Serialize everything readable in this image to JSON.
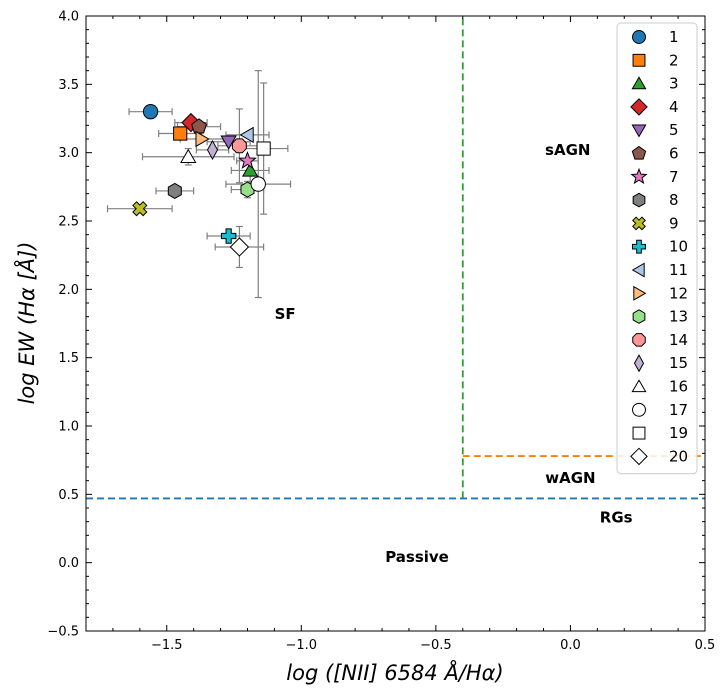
{
  "chart_data": {
    "type": "scatter",
    "xlabel": "log ([NII] 6584 Å/Hα)",
    "ylabel": "log EW (Hα [Å])",
    "xlim": [
      -1.8,
      0.5
    ],
    "ylim": [
      -0.5,
      4.0
    ],
    "xticks": [
      -1.5,
      -1.0,
      -0.5,
      0.0,
      0.5
    ],
    "xtick_labels": [
      "−1.5",
      "−1.0",
      "−0.5",
      "0.0",
      "0.5"
    ],
    "yticks": [
      -0.5,
      0.0,
      0.5,
      1.0,
      1.5,
      2.0,
      2.5,
      3.0,
      3.5,
      4.0
    ],
    "ytick_labels": [
      "−0.5",
      "0.0",
      "0.5",
      "1.0",
      "1.5",
      "2.0",
      "2.5",
      "3.0",
      "3.5",
      "4.0"
    ],
    "grid": false,
    "legend_position": "top-right",
    "boundary_lines": [
      {
        "orientation": "vertical",
        "x": -0.4,
        "y_range": [
          0.47,
          4.0
        ],
        "color": "#2ca02c",
        "style": "dashed"
      },
      {
        "orientation": "horizontal",
        "y": 0.47,
        "x_range": [
          -1.8,
          0.5
        ],
        "color": "#1f77b4",
        "style": "dashed"
      },
      {
        "orientation": "horizontal",
        "y": 0.78,
        "x_range": [
          -0.4,
          0.5
        ],
        "color": "#ff7f0e",
        "style": "dashed"
      }
    ],
    "region_labels": [
      {
        "text": "sAGN",
        "x": -0.01,
        "y": 3.02
      },
      {
        "text": "SF",
        "x": -1.06,
        "y": 1.82
      },
      {
        "text": "wAGN",
        "x": 0.0,
        "y": 0.62
      },
      {
        "text": "RGs",
        "x": 0.17,
        "y": 0.33
      },
      {
        "text": "Passive",
        "x": -0.57,
        "y": 0.04
      }
    ],
    "series": [
      {
        "name": "1",
        "marker": "circle",
        "color": "#1f77b4",
        "filled": true,
        "x": -1.56,
        "y": 3.3,
        "xerr": 0.08,
        "yerr": 0.0
      },
      {
        "name": "2",
        "marker": "square",
        "color": "#ff7f0e",
        "filled": true,
        "x": -1.45,
        "y": 3.14,
        "xerr": 0.08,
        "yerr": 0.0
      },
      {
        "name": "3",
        "marker": "triangle-up",
        "color": "#2ca02c",
        "filled": true,
        "x": -1.19,
        "y": 2.87,
        "xerr": 0.07,
        "yerr": 0.09
      },
      {
        "name": "4",
        "marker": "diamond",
        "color": "#d62728",
        "filled": true,
        "x": -1.41,
        "y": 3.22,
        "xerr": 0.06,
        "yerr": 0.0
      },
      {
        "name": "5",
        "marker": "triangle-down",
        "color": "#9467bd",
        "filled": true,
        "x": -1.27,
        "y": 3.08,
        "xerr": 0.08,
        "yerr": 0.0
      },
      {
        "name": "6",
        "marker": "pentagon",
        "color": "#8c564b",
        "filled": true,
        "x": -1.38,
        "y": 3.19,
        "xerr": 0.08,
        "yerr": 0.0
      },
      {
        "name": "7",
        "marker": "star",
        "color": "#e377c2",
        "filled": true,
        "x": -1.2,
        "y": 2.94,
        "xerr": 0.04,
        "yerr": 0.0
      },
      {
        "name": "8",
        "marker": "hexagon",
        "color": "#7f7f7f",
        "filled": true,
        "x": -1.47,
        "y": 2.72,
        "xerr": 0.07,
        "yerr": 0.04
      },
      {
        "name": "9",
        "marker": "x-filled",
        "color": "#bcbd22",
        "filled": true,
        "x": -1.6,
        "y": 2.59,
        "xerr": 0.12,
        "yerr": 0.0
      },
      {
        "name": "10",
        "marker": "plus-filled",
        "color": "#17becf",
        "filled": true,
        "x": -1.27,
        "y": 2.39,
        "xerr": 0.08,
        "yerr": 0.0
      },
      {
        "name": "11",
        "marker": "triangle-left",
        "color": "#aec7e8",
        "filled": true,
        "x": -1.2,
        "y": 3.13,
        "xerr": 0.08,
        "yerr": 0.0
      },
      {
        "name": "12",
        "marker": "triangle-right",
        "color": "#ffbb78",
        "filled": true,
        "x": -1.37,
        "y": 3.1,
        "xerr": 0.08,
        "yerr": 0.0
      },
      {
        "name": "13",
        "marker": "hexagon",
        "color": "#98df8a",
        "filled": true,
        "x": -1.2,
        "y": 2.73,
        "xerr": 0.06,
        "yerr": 0.06
      },
      {
        "name": "14",
        "marker": "octagon",
        "color": "#ff9896",
        "filled": true,
        "x": -1.23,
        "y": 3.05,
        "xerr": 0.08,
        "yerr": 0.27
      },
      {
        "name": "15",
        "marker": "thin-diamond",
        "color": "#c5b0d5",
        "filled": true,
        "x": -1.33,
        "y": 3.02,
        "xerr": 0.06,
        "yerr": 0.0
      },
      {
        "name": "16",
        "marker": "triangle-up",
        "color": "#ffffff",
        "filled": false,
        "x": -1.42,
        "y": 2.97,
        "xerr": 0.17,
        "yerr": 0.06
      },
      {
        "name": "17",
        "marker": "circle",
        "color": "#ffffff",
        "filled": false,
        "x": -1.16,
        "y": 2.77,
        "xerr": 0.12,
        "yerr": 0.83
      },
      {
        "name": "19",
        "marker": "square",
        "color": "#ffffff",
        "filled": false,
        "x": -1.14,
        "y": 3.03,
        "xerr": 0.09,
        "yerr": 0.48
      },
      {
        "name": "20",
        "marker": "diamond",
        "color": "#ffffff",
        "filled": false,
        "x": -1.23,
        "y": 2.31,
        "xerr": 0.09,
        "yerr": 0.15
      }
    ]
  }
}
